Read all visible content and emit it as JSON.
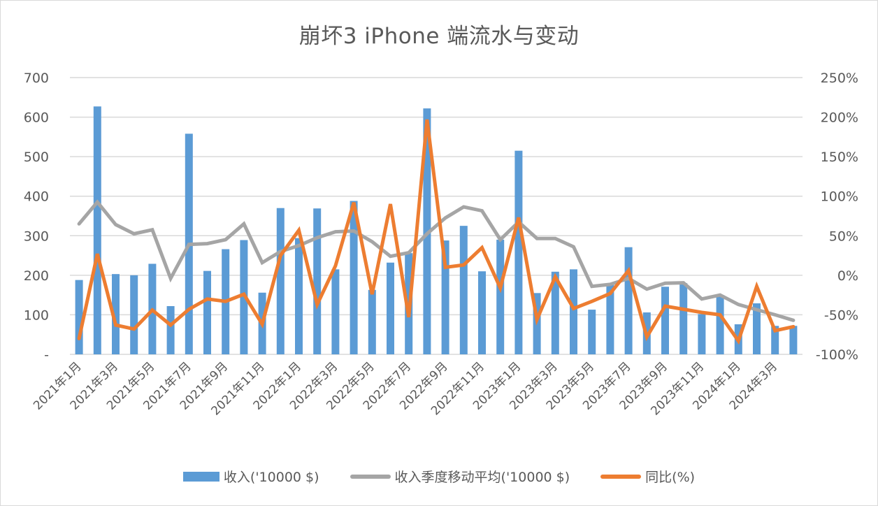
{
  "chart_data": {
    "type": "bar+line",
    "title": "崩坏3 iPhone 端流水与变动",
    "categories": [
      "2021年1月",
      "2021年2月",
      "2021年3月",
      "2021年4月",
      "2021年5月",
      "2021年6月",
      "2021年7月",
      "2021年8月",
      "2021年9月",
      "2021年10月",
      "2021年11月",
      "2021年12月",
      "2022年1月",
      "2022年2月",
      "2022年3月",
      "2022年4月",
      "2022年5月",
      "2022年6月",
      "2022年7月",
      "2022年8月",
      "2022年9月",
      "2022年10月",
      "2022年11月",
      "2022年12月",
      "2023年1月",
      "2023年2月",
      "2023年3月",
      "2023年4月",
      "2023年5月",
      "2023年6月",
      "2023年7月",
      "2023年8月",
      "2023年9月",
      "2023年10月",
      "2023年11月",
      "2023年12月",
      "2024年1月",
      "2024年2月",
      "2024年3月",
      "2024年4月"
    ],
    "x_tick_labels": [
      "2021年1月",
      "2021年3月",
      "2021年5月",
      "2021年7月",
      "2021年9月",
      "2021年11月",
      "2022年1月",
      "2022年3月",
      "2022年5月",
      "2022年7月",
      "2022年9月",
      "2022年11月",
      "2023年1月",
      "2023年3月",
      "2023年5月",
      "2023年7月",
      "2023年9月",
      "2023年11月",
      "2024年1月",
      "2024年3月"
    ],
    "series": [
      {
        "name": "收入('10000 $)",
        "type": "bar",
        "axis": "left",
        "color": "#5b9bd5",
        "values": [
          188,
          627,
          203,
          200,
          229,
          122,
          558,
          211,
          266,
          289,
          156,
          370,
          294,
          369,
          215,
          388,
          163,
          232,
          256,
          622,
          288,
          325,
          210,
          290,
          515,
          155,
          209,
          215,
          113,
          175,
          271,
          106,
          171,
          180,
          102,
          150,
          76,
          129,
          72,
          72
        ]
      },
      {
        "name": "收入季度移动平均('10000 $)",
        "type": "line",
        "axis": "left",
        "color": "#a5a5a5",
        "values": [
          330,
          385,
          328,
          305,
          315,
          192,
          278,
          280,
          290,
          330,
          232,
          260,
          275,
          295,
          310,
          312,
          285,
          248,
          257,
          305,
          345,
          373,
          363,
          290,
          335,
          293,
          293,
          272,
          172,
          177,
          192,
          165,
          180,
          181,
          140,
          150,
          126,
          113,
          100,
          86
        ]
      },
      {
        "name": "同比(%)",
        "type": "line",
        "axis": "right",
        "color": "#ed7d31",
        "values": [
          -80,
          27,
          -63,
          -68,
          -44,
          -63,
          -43,
          -30,
          -33,
          -24,
          -62,
          25,
          57,
          -37,
          12,
          92,
          -24,
          90,
          -53,
          197,
          10,
          13,
          35,
          -16,
          73,
          -56,
          -2,
          -42,
          -33,
          -23,
          6,
          -78,
          -39,
          -43,
          -47,
          -50,
          -83,
          -14,
          -70,
          -65
        ]
      }
    ],
    "y_left": {
      "label": "",
      "ylim": [
        0,
        700
      ],
      "ticks": [
        "-",
        "100",
        "200",
        "300",
        "400",
        "500",
        "600",
        "700"
      ]
    },
    "y_right": {
      "label": "",
      "ylim": [
        -100,
        250
      ],
      "ticks": [
        "-100%",
        "-50%",
        "0%",
        "50%",
        "100%",
        "150%",
        "200%",
        "250%"
      ]
    },
    "grid": true,
    "legend_position": "bottom"
  },
  "legend": {
    "bar_label": "收入('10000 $)",
    "avg_label": "收入季度移动平均('10000 $)",
    "yoy_label": "同比(%)"
  }
}
